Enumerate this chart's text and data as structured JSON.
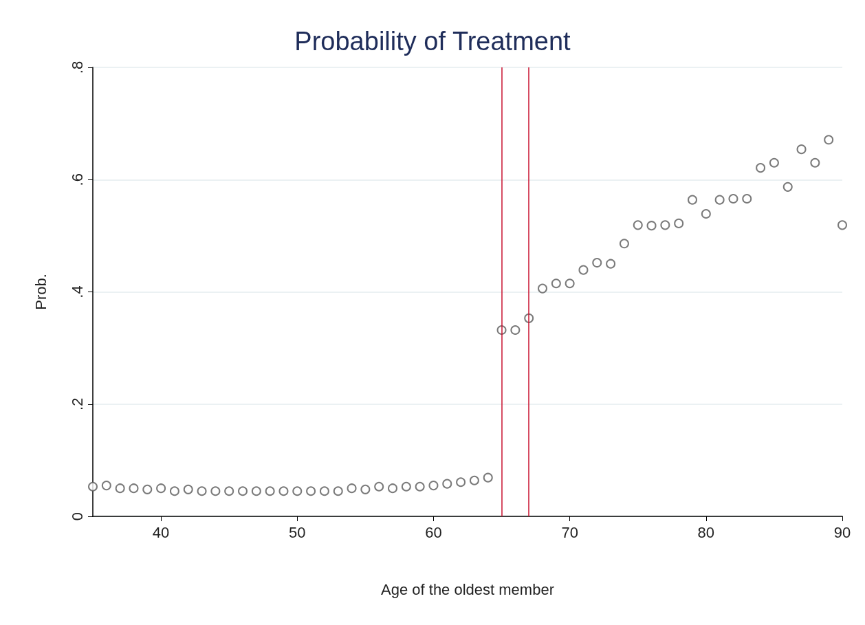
{
  "chart_data": {
    "type": "scatter",
    "title": "Probability of Treatment",
    "xlabel": "Age of the oldest member",
    "ylabel": "Prob.",
    "x": [
      35,
      36,
      37,
      38,
      39,
      40,
      41,
      42,
      43,
      44,
      45,
      46,
      47,
      48,
      49,
      50,
      51,
      52,
      53,
      54,
      55,
      56,
      57,
      58,
      59,
      60,
      61,
      62,
      63,
      64,
      65,
      66,
      67,
      68,
      69,
      70,
      71,
      72,
      73,
      74,
      75,
      76,
      77,
      78,
      79,
      80,
      81,
      82,
      83,
      84,
      85,
      86,
      87,
      88,
      89,
      90
    ],
    "series": [
      {
        "color": "#595959",
        "values": [
          0.053,
          0.055,
          0.05,
          0.05,
          0.048,
          0.05,
          0.045,
          0.048,
          0.045,
          0.045,
          0.045,
          0.045,
          0.045,
          0.045,
          0.045,
          0.045,
          0.045,
          0.045,
          0.045,
          0.05,
          0.048,
          0.053,
          0.05,
          0.053,
          0.053,
          0.055,
          0.058,
          0.061,
          0.064,
          0.069,
          0.332,
          0.332,
          0.353,
          0.406,
          0.415,
          0.415,
          0.439,
          0.452,
          0.45,
          0.486,
          0.519,
          0.518,
          0.519,
          0.522,
          0.564,
          0.539,
          0.564,
          0.566,
          0.566,
          0.621,
          0.63,
          0.587,
          0.654,
          0.63,
          0.671,
          0.519
        ]
      }
    ],
    "xlim": [
      35,
      90
    ],
    "xticks": [
      40,
      50,
      60,
      70,
      80,
      90
    ],
    "ylim": [
      0,
      0.8
    ],
    "yticks": [
      0,
      {
        "value": 0.2,
        "label": ".2"
      },
      {
        "value": 0.4,
        "label": ".4"
      },
      {
        "value": 0.6,
        "label": ".6"
      },
      {
        "value": 0.8,
        "label": ".8"
      }
    ],
    "grid": "y",
    "marker": "circle",
    "ref_lines": [
      {
        "axis": "x",
        "value": 65,
        "color": "#c8102e"
      },
      {
        "axis": "x",
        "value": 67,
        "color": "#c8102e"
      }
    ]
  }
}
